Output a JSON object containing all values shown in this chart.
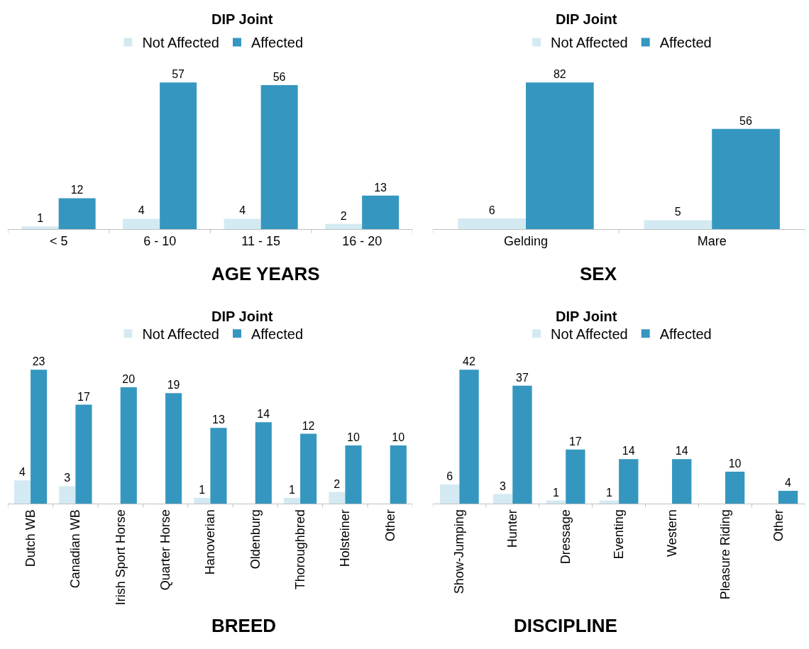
{
  "chart_data": [
    {
      "type": "bar",
      "title": "DIP Joint",
      "xlabel": "AGE YEARS",
      "categories": [
        "< 5",
        "6 - 10",
        "11 - 15",
        "16 - 20"
      ],
      "legend": "top",
      "data_labels": true,
      "series": [
        {
          "name": "Not Affected",
          "color": "#d4eaf2",
          "values": [
            1,
            4,
            4,
            2
          ]
        },
        {
          "name": "Affected",
          "color": "#3597bf",
          "values": [
            12,
            57,
            56,
            13
          ]
        }
      ]
    },
    {
      "type": "bar",
      "title": "DIP Joint",
      "xlabel": "SEX",
      "categories": [
        "Gelding",
        "Mare"
      ],
      "legend": "top",
      "data_labels": true,
      "series": [
        {
          "name": "Not Affected",
          "color": "#d4eaf2",
          "values": [
            6,
            5
          ]
        },
        {
          "name": "Affected",
          "color": "#3597bf",
          "values": [
            82,
            56
          ]
        }
      ]
    },
    {
      "type": "bar",
      "title": "DIP Joint",
      "xlabel": "BREED",
      "categories": [
        "Dutch WB",
        "Canadian WB",
        "Irish Sport Horse",
        "Quarter Horse",
        "Hanoverian",
        "Oldenburg",
        "Thoroughbred",
        "Holsteiner",
        "Other"
      ],
      "legend": "top",
      "data_labels": true,
      "series": [
        {
          "name": "Not Affected",
          "color": "#d4eaf2",
          "values": [
            4,
            3,
            null,
            null,
            1,
            null,
            1,
            2,
            null
          ]
        },
        {
          "name": "Affected",
          "color": "#3597bf",
          "values": [
            23,
            17,
            20,
            19,
            13,
            14,
            12,
            10,
            10
          ]
        }
      ]
    },
    {
      "type": "bar",
      "title": "DIP Joint",
      "xlabel": "DISCIPLINE",
      "categories": [
        "Show-Jumping",
        "Hunter",
        "Dressage",
        "Eventing",
        "Western",
        "Pleasure Riding",
        "Other"
      ],
      "legend": "top",
      "data_labels": true,
      "series": [
        {
          "name": "Not Affected",
          "color": "#d4eaf2",
          "values": [
            6,
            3,
            1,
            1,
            null,
            null,
            null
          ]
        },
        {
          "name": "Affected",
          "color": "#3597bf",
          "values": [
            42,
            37,
            17,
            14,
            14,
            10,
            4
          ]
        }
      ]
    }
  ]
}
